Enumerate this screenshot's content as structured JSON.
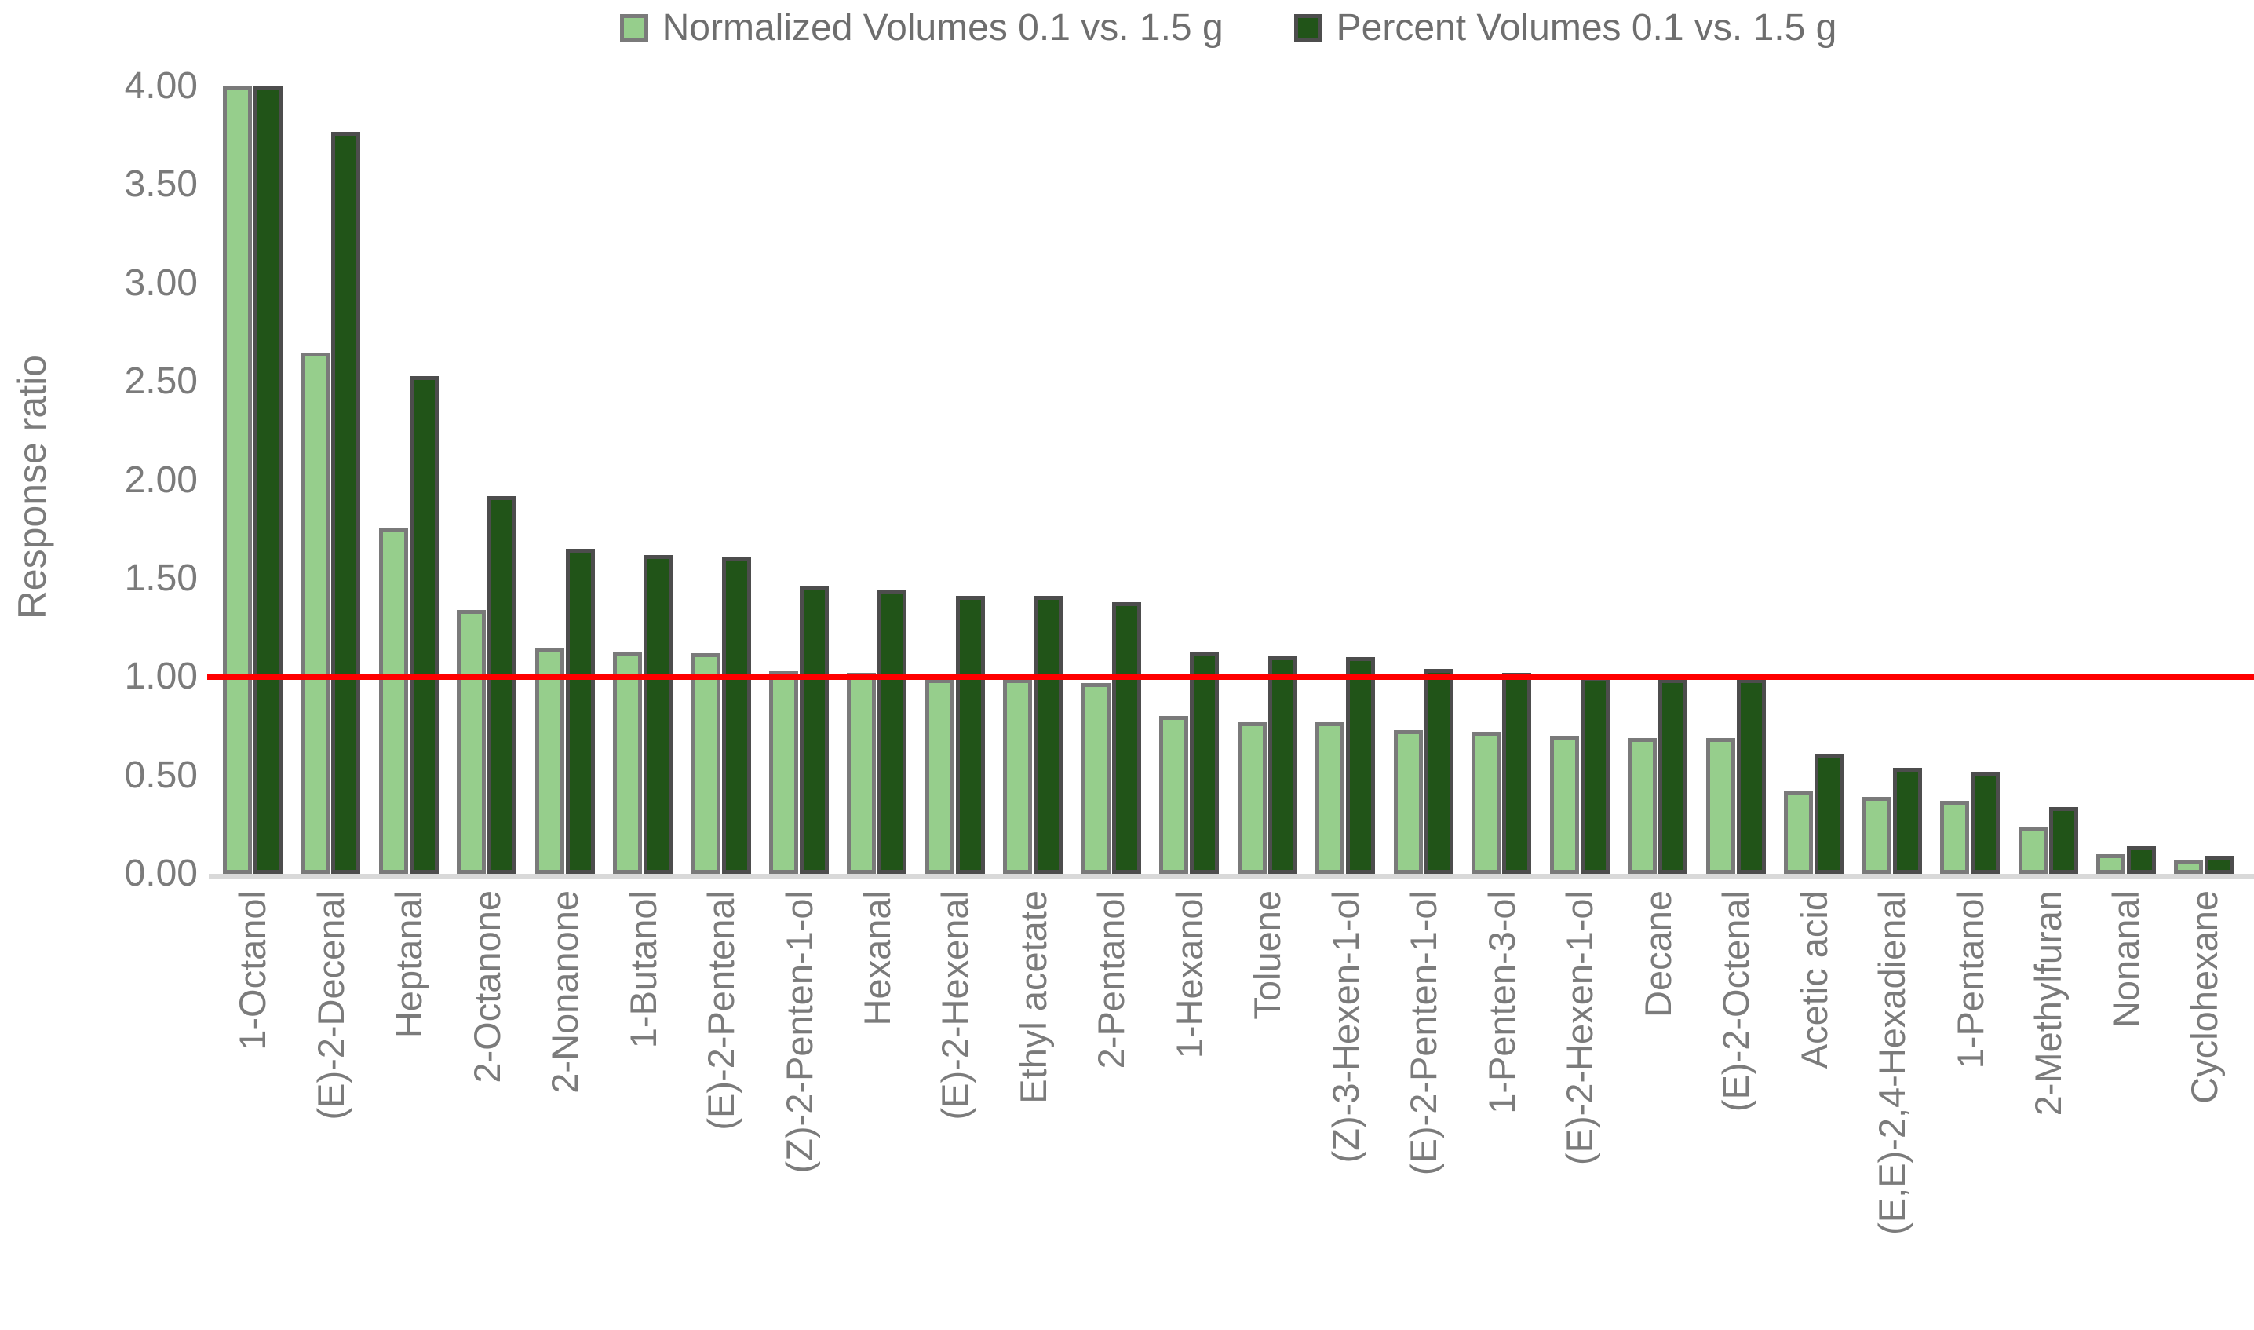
{
  "legend": {
    "items": [
      {
        "label": "Normalized Volumes 0.1 vs. 1.5 g",
        "color": "#96ce8c",
        "border": "#7a7a7a"
      },
      {
        "label": "Percent Volumes 0.1 vs. 1.5 g",
        "color": "#215418",
        "border": "#4d4d4d"
      }
    ]
  },
  "y_axis": {
    "title": "Response ratio",
    "tick_labels": [
      "0.00",
      "0.50",
      "1.00",
      "1.50",
      "2.00",
      "2.50",
      "3.00",
      "3.50",
      "4.00"
    ]
  },
  "reference_line": {
    "value": 1.0,
    "color": "#ff0000"
  },
  "chart_data": {
    "type": "bar",
    "title": "",
    "xlabel": "",
    "ylabel": "Response ratio",
    "ylim": [
      0,
      4
    ],
    "ytick_step": 0.5,
    "grid": false,
    "legend_position": "top",
    "annotations": [
      {
        "type": "horizontal-line",
        "y": 1.0,
        "color": "#ff0000"
      }
    ],
    "categories": [
      "1-Octanol",
      "(E)-2-Decenal",
      "Heptanal",
      "2-Octanone",
      "2-Nonanone",
      "1-Butanol",
      "(E)-2-Pentenal",
      "(Z)-2-Penten-1-ol",
      "Hexanal",
      "(E)-2-Hexenal",
      "Ethyl acetate",
      "2-Pentanol",
      "1-Hexanol",
      "Toluene",
      "(Z)-3-Hexen-1-ol",
      "(E)-2-Penten-1-ol",
      "1-Penten-3-ol",
      "(E)-2-Hexen-1-ol",
      "Decane",
      "(E)-2-Octenal",
      "Acetic acid",
      "(E,E)-2,4-Hexadienal",
      "1-Pentanol",
      "2-Methylfuran",
      "Nonanal",
      "Cyclohexane"
    ],
    "series": [
      {
        "name": "Normalized Volumes 0.1 vs. 1.5 g",
        "color": "#96ce8c",
        "values": [
          4.0,
          2.65,
          1.76,
          1.34,
          1.15,
          1.13,
          1.12,
          1.03,
          1.02,
          0.99,
          0.99,
          0.97,
          0.8,
          0.77,
          0.77,
          0.73,
          0.72,
          0.7,
          0.69,
          0.69,
          0.42,
          0.39,
          0.37,
          0.24,
          0.1,
          0.07
        ]
      },
      {
        "name": "Percent Volumes 0.1 vs. 1.5 g",
        "color": "#215418",
        "values": [
          4.0,
          3.77,
          2.53,
          1.92,
          1.65,
          1.62,
          1.61,
          1.46,
          1.44,
          1.41,
          1.41,
          1.38,
          1.13,
          1.11,
          1.1,
          1.04,
          1.02,
          1.0,
          0.99,
          0.99,
          0.61,
          0.54,
          0.52,
          0.34,
          0.14,
          0.09
        ]
      }
    ]
  }
}
